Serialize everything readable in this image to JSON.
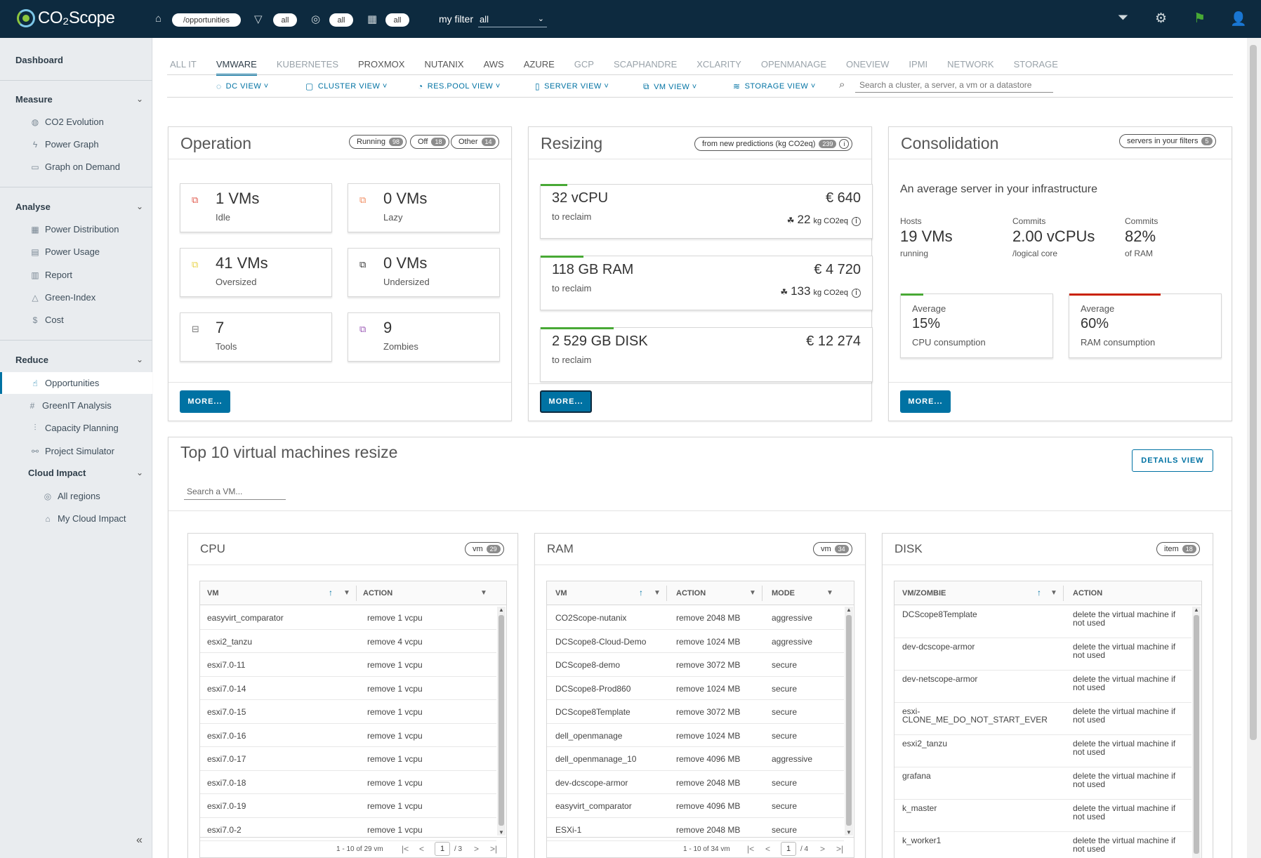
{
  "header": {
    "logo": "CO₂Scope",
    "path_pill": "/opportunities",
    "filter_pills": [
      "all",
      "all",
      "all"
    ],
    "my_filter_label": "my filter",
    "my_filter_value": "all"
  },
  "sidebar": {
    "dashboard": "Dashboard",
    "measure": {
      "label": "Measure",
      "items": [
        "CO2 Evolution",
        "Power Graph",
        "Graph on Demand"
      ]
    },
    "analyse": {
      "label": "Analyse",
      "items": [
        "Power Distribution",
        "Power Usage",
        "Report",
        "Green-Index",
        "Cost"
      ]
    },
    "reduce": {
      "label": "Reduce",
      "items": [
        "Opportunities",
        "GreenIT Analysis",
        "Capacity Planning",
        "Project Simulator"
      ]
    },
    "cloud_impact": {
      "label": "Cloud Impact",
      "items": [
        "All regions",
        "My Cloud Impact"
      ]
    }
  },
  "tabs": [
    "ALL IT",
    "VMWARE",
    "KUBERNETES",
    "PROXMOX",
    "NUTANIX",
    "AWS",
    "AZURE",
    "GCP",
    "SCAPHANDRE",
    "XCLARITY",
    "OPENMANAGE",
    "ONEVIEW",
    "IPMI",
    "NETWORK",
    "STORAGE"
  ],
  "subtabs": [
    "DC VIEW",
    "CLUSTER VIEW",
    "RES.POOL VIEW",
    "SERVER VIEW",
    "VM VIEW",
    "STORAGE VIEW"
  ],
  "search_placeholder": "Search a cluster, a server, a vm or a datastore",
  "operation": {
    "title": "Operation",
    "badges": [
      {
        "label": "Running",
        "n": "98"
      },
      {
        "label": "Off",
        "n": "18"
      },
      {
        "label": "Other",
        "n": "14"
      }
    ],
    "tiles": [
      {
        "big": "1 VMs",
        "sub": "Idle"
      },
      {
        "big": "0 VMs",
        "sub": "Lazy"
      },
      {
        "big": "41 VMs",
        "sub": "Oversized"
      },
      {
        "big": "0 VMs",
        "sub": "Undersized"
      },
      {
        "big": "7",
        "sub": "Tools"
      },
      {
        "big": "9",
        "sub": "Zombies"
      }
    ],
    "more": "MORE..."
  },
  "resizing": {
    "title": "Resizing",
    "badge": "from new predictions (kg CO2eq)",
    "badge_n": "239",
    "tiles": [
      {
        "big": "32 vCPU",
        "sub": "to reclaim",
        "eur": "€ 640",
        "co2": "22",
        "unit": "kg CO2eq",
        "fill": 0.08
      },
      {
        "big": "118 GB RAM",
        "sub": "to reclaim",
        "eur": "€ 4 720",
        "co2": "133",
        "unit": "kg CO2eq",
        "fill": 0.13
      },
      {
        "big": "2 529 GB DISK",
        "sub": "to reclaim",
        "eur": "€ 12 274",
        "co2": "",
        "unit": "",
        "fill": 0.22
      }
    ],
    "more": "MORE..."
  },
  "consolidation": {
    "title": "Consolidation",
    "badge": "servers in your filters",
    "badge_n": "5",
    "heading": "An average server in your infrastructure",
    "stats": [
      {
        "label": "Hosts",
        "value": "19 VMs",
        "sub": "running"
      },
      {
        "label": "Commits",
        "value": "2.00 vCPUs",
        "sub": "/logical core"
      },
      {
        "label": "Commits",
        "value": "82%",
        "sub": "of RAM"
      }
    ],
    "tiles": [
      {
        "l1": "Average",
        "l2": "15%",
        "l3": "CPU consumption",
        "fill": 0.15,
        "color": "#48a935"
      },
      {
        "l1": "Average",
        "l2": "60%",
        "l3": "RAM consumption",
        "fill": 0.6,
        "color": "#c92100"
      }
    ],
    "more": "MORE..."
  },
  "top10": {
    "title": "Top 10 virtual machines resize",
    "details": "DETAILS VIEW",
    "search_placeholder": "Search a VM..."
  },
  "cpu": {
    "title": "CPU",
    "badge": "vm",
    "badge_n": "29",
    "cols": [
      "VM",
      "ACTION"
    ],
    "rows": [
      [
        "easyvirt_comparator",
        "remove 1 vcpu"
      ],
      [
        "esxi2_tanzu",
        "remove 4 vcpu"
      ],
      [
        "esxi7.0-11",
        "remove 1 vcpu"
      ],
      [
        "esxi7.0-14",
        "remove 1 vcpu"
      ],
      [
        "esxi7.0-15",
        "remove 1 vcpu"
      ],
      [
        "esxi7.0-16",
        "remove 1 vcpu"
      ],
      [
        "esxi7.0-17",
        "remove 1 vcpu"
      ],
      [
        "esxi7.0-18",
        "remove 1 vcpu"
      ],
      [
        "esxi7.0-19",
        "remove 1 vcpu"
      ],
      [
        "esxi7.0-2",
        "remove 1 vcpu"
      ]
    ],
    "footer": "1 - 10 of 29 vm",
    "page": "1",
    "pages": "/ 3"
  },
  "ram": {
    "title": "RAM",
    "badge": "vm",
    "badge_n": "34",
    "cols": [
      "VM",
      "ACTION",
      "MODE"
    ],
    "rows": [
      [
        "CO2Scope-nutanix",
        "remove 2048 MB",
        "aggressive"
      ],
      [
        "DCScope8-Cloud-Demo",
        "remove 1024 MB",
        "aggressive"
      ],
      [
        "DCScope8-demo",
        "remove 3072 MB",
        "secure"
      ],
      [
        "DCScope8-Prod860",
        "remove 1024 MB",
        "secure"
      ],
      [
        "DCScope8Template",
        "remove 3072 MB",
        "secure"
      ],
      [
        "dell_openmanage",
        "remove 1024 MB",
        "secure"
      ],
      [
        "dell_openmanage_10",
        "remove 4096 MB",
        "aggressive"
      ],
      [
        "dev-dcscope-armor",
        "remove 2048 MB",
        "secure"
      ],
      [
        "easyvirt_comparator",
        "remove 4096 MB",
        "secure"
      ],
      [
        "ESXi-1",
        "remove 2048 MB",
        "secure"
      ]
    ],
    "footer": "1 - 10 of 34 vm",
    "page": "1",
    "pages": "/ 4"
  },
  "disk": {
    "title": "DISK",
    "badge": "item",
    "badge_n": "18",
    "cols": [
      "VM/ZOMBIE",
      "ACTION"
    ],
    "rows": [
      [
        "DCScope8Template",
        "delete the virtual machine if not used"
      ],
      [
        "dev-dcscope-armor",
        "delete the virtual machine if not used"
      ],
      [
        "dev-netscope-armor",
        "delete the virtual machine if not used"
      ],
      [
        "esxi-CLONE_ME_DO_NOT_START_EVER",
        "delete the virtual machine if not used"
      ],
      [
        "esxi2_tanzu",
        "delete the virtual machine if not used"
      ],
      [
        "grafana",
        "delete the virtual machine if not used"
      ],
      [
        "k_master",
        "delete the virtual machine if not used"
      ],
      [
        "k_worker1",
        "delete the virtual machine if not used"
      ]
    ]
  }
}
